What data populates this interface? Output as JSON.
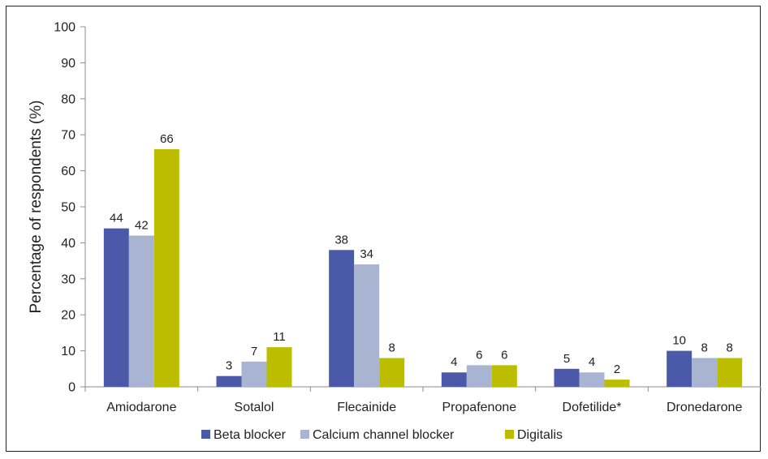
{
  "chart_data": {
    "type": "bar",
    "title": "",
    "xlabel": "",
    "ylabel": "Percentage of respondents (%)",
    "ylim": [
      0,
      100
    ],
    "yticks": [
      0,
      10,
      20,
      30,
      40,
      50,
      60,
      70,
      80,
      90,
      100
    ],
    "grid": false,
    "legend_position": "bottom",
    "categories": [
      "Amiodarone",
      "Sotalol",
      "Flecainide",
      "Propafenone",
      "Dofetilide*",
      "Dronedarone"
    ],
    "series": [
      {
        "name": "Beta blocker",
        "color": "#4a5aa8",
        "values": [
          44,
          3,
          38,
          4,
          5,
          10
        ]
      },
      {
        "name": "Calcium channel blocker",
        "color": "#a8b4d2",
        "values": [
          42,
          7,
          34,
          6,
          4,
          8
        ]
      },
      {
        "name": "Digitalis",
        "color": "#bdbd00",
        "values": [
          66,
          11,
          8,
          6,
          2,
          8
        ]
      }
    ]
  }
}
